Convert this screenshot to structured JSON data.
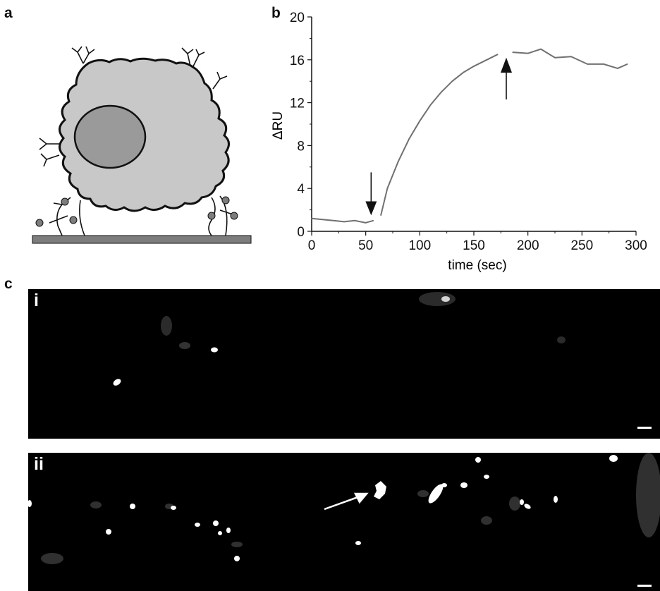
{
  "panels": {
    "a": "a",
    "b": "b",
    "c": "c"
  },
  "micrographs": {
    "i_label": "i",
    "ii_label": "ii"
  },
  "colors": {
    "trace": "#707070",
    "cell_body": "#c8c8c8",
    "nucleus": "#9a9a9a",
    "substrate": "#7d7d7d",
    "micro_bg": "#000000"
  },
  "chart_data": {
    "type": "line",
    "title": "",
    "xlabel": "time (sec)",
    "ylabel": "ΔRU",
    "xlim": [
      0,
      300
    ],
    "ylim": [
      0,
      20
    ],
    "xticks": [
      0,
      50,
      100,
      150,
      200,
      250,
      300
    ],
    "yticks": [
      0,
      4,
      8,
      12,
      16,
      20
    ],
    "grid": false,
    "series": [
      {
        "x": [
          0,
          10,
          20,
          30,
          40,
          50,
          57
        ],
        "y": [
          1.2,
          1.1,
          1.0,
          0.9,
          1.0,
          0.8,
          1.0
        ]
      },
      {
        "x": [
          64,
          70,
          80,
          90,
          100,
          110,
          120,
          130,
          140,
          150,
          160,
          172
        ],
        "y": [
          1.5,
          4.0,
          6.5,
          8.6,
          10.3,
          11.8,
          13.0,
          14.0,
          14.8,
          15.4,
          15.9,
          16.5
        ]
      },
      {
        "x": [
          186,
          200,
          212,
          225,
          240,
          255,
          270,
          283,
          292
        ],
        "y": [
          16.7,
          16.6,
          17.0,
          16.2,
          16.3,
          15.6,
          15.6,
          15.2,
          15.6
        ]
      }
    ],
    "annotations": [
      {
        "type": "arrow-down",
        "x": 55
      },
      {
        "type": "arrow-up",
        "x": 180
      }
    ]
  }
}
